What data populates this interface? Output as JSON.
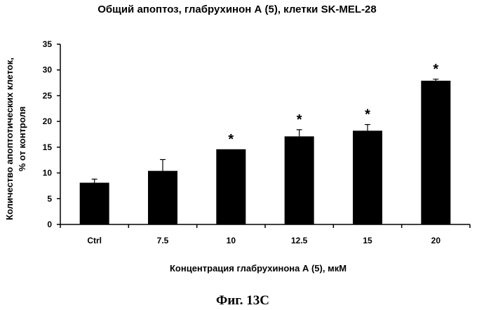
{
  "chart_data": {
    "type": "bar",
    "title": "Общий апоптоз, глабрухинон А (5), клетки SK-MEL-28",
    "xlabel": "Концентрация глабрухинона А (5), мкМ",
    "ylabel": [
      "Количество апоптотических клеток,",
      "% от контроля"
    ],
    "categories": [
      "Ctrl",
      "7.5",
      "10",
      "12.5",
      "15",
      "20"
    ],
    "values": [
      8.1,
      10.4,
      14.6,
      17.1,
      18.2,
      27.9
    ],
    "errors": [
      0.7,
      2.2,
      0,
      1.3,
      1.2,
      0.3
    ],
    "significance": [
      "",
      "",
      "*",
      "*",
      "*",
      "*"
    ],
    "ylim": [
      0,
      35
    ],
    "yticks": [
      0,
      5,
      10,
      15,
      20,
      25,
      30,
      35
    ],
    "bar_color": "#000000",
    "grid": false
  },
  "caption": "Фиг. 13C"
}
